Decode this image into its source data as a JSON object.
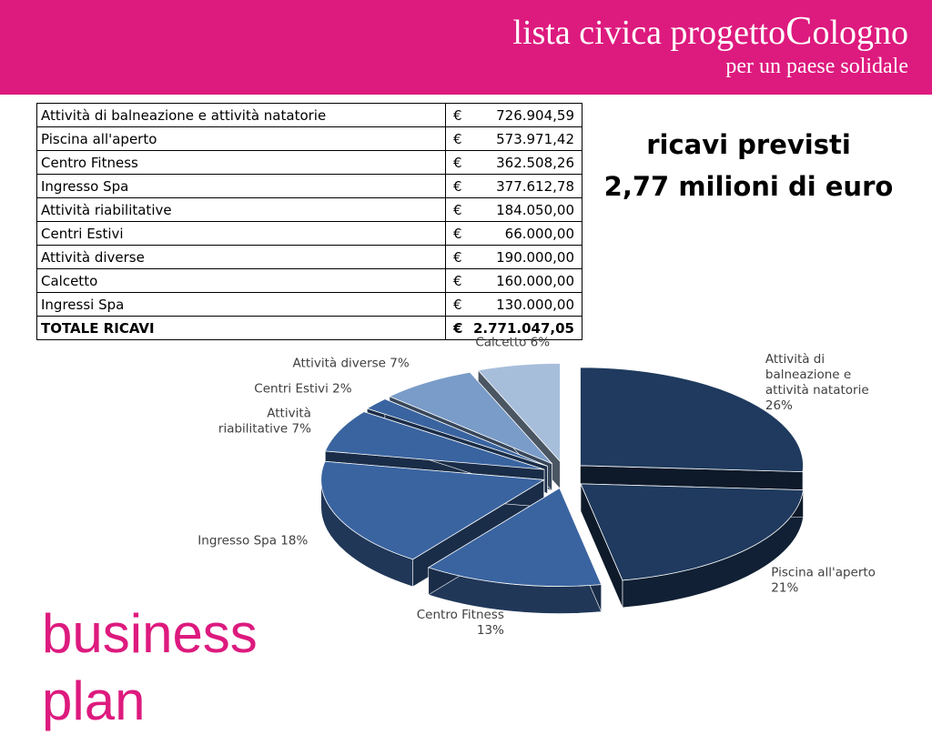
{
  "header": {
    "brand_prefix": "lista civica progetto",
    "brand_cap": "C",
    "brand_suffix": "ologno",
    "tagline": "per un paese solidale",
    "bg_color": "#dd1a7e"
  },
  "table": {
    "currency": "€",
    "rows": [
      {
        "label": "Attività di balneazione e attività natatorie",
        "amount": "726.904,59"
      },
      {
        "label": "Piscina all'aperto",
        "amount": "573.971,42"
      },
      {
        "label": "Centro Fitness",
        "amount": "362.508,26"
      },
      {
        "label": "Ingresso Spa",
        "amount": "377.612,78"
      },
      {
        "label": "Attività riabilitative",
        "amount": "184.050,00"
      },
      {
        "label": "Centri Estivi",
        "amount": "66.000,00"
      },
      {
        "label": "Attività diverse",
        "amount": "190.000,00"
      },
      {
        "label": "Calcetto",
        "amount": "160.000,00"
      },
      {
        "label": "Ingressi Spa",
        "amount": "130.000,00"
      }
    ],
    "total": {
      "label": "TOTALE RICAVI",
      "amount": "2.771.047,05"
    }
  },
  "headline": {
    "line1": "ricavi previsti",
    "line2": "2,77 milioni di euro"
  },
  "bottom_title": {
    "line1": "business",
    "line2": "plan",
    "color": "#dd1a7e"
  },
  "chart_data": {
    "type": "pie",
    "categories": [
      "Attività di balneazione e attività natatorie",
      "Piscina all'aperto",
      "Centro Fitness",
      "Ingresso Spa",
      "Attività riabilitative",
      "Centri Estivi",
      "Attività diverse",
      "Calcetto"
    ],
    "values": [
      26,
      21,
      13,
      18,
      7,
      2,
      7,
      6
    ],
    "labels": [
      [
        "Attività di",
        "balneazione e",
        "attività natatorie",
        "26%"
      ],
      [
        "Piscina all'aperto",
        "21%"
      ],
      [
        "Centro Fitness",
        "13%"
      ],
      [
        "Ingresso Spa 18%"
      ],
      [
        "Attività",
        "riabilitative 7%"
      ],
      [
        "Centri Estivi 2%"
      ],
      [
        "Attività diverse 7%"
      ],
      [
        "Calcetto 6%"
      ]
    ],
    "colors": [
      "#1f3a5e",
      "#1f3a5e",
      "#3a64a0",
      "#3a64a0",
      "#3a64a0",
      "#3a64a0",
      "#7a9cc8",
      "#a7bedb"
    ],
    "exploded": true,
    "style": "3d"
  }
}
